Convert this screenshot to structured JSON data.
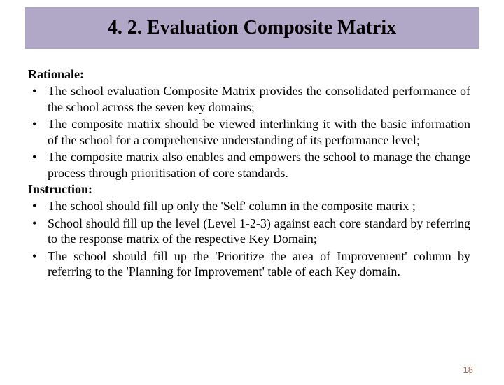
{
  "title": "4. 2. Evaluation Composite Matrix",
  "banner_bg": "#b1a7c7",
  "text_color": "#000000",
  "page_number": "18",
  "page_number_color": "#9c6b5a",
  "rationale": {
    "label": "Rationale:",
    "items": [
      "The school evaluation Composite Matrix provides the consolidated performance of the school across the seven key domains;",
      "The composite matrix should be viewed interlinking it with the basic information of the school for a comprehensive understanding of its performance level;",
      "The composite matrix also enables and empowers the school to manage the change process through prioritisation of core standards."
    ]
  },
  "instruction": {
    "label": "Instruction:",
    "items": [
      "The school should fill up only the 'Self' column in the composite matrix ;",
      "School should fill up the level (Level 1-2-3) against each core standard by referring to the response matrix of the respective Key Domain;",
      "The school should fill up the 'Prioritize the area of Improvement' column by referring to the 'Planning for Improvement' table of each Key domain."
    ]
  }
}
